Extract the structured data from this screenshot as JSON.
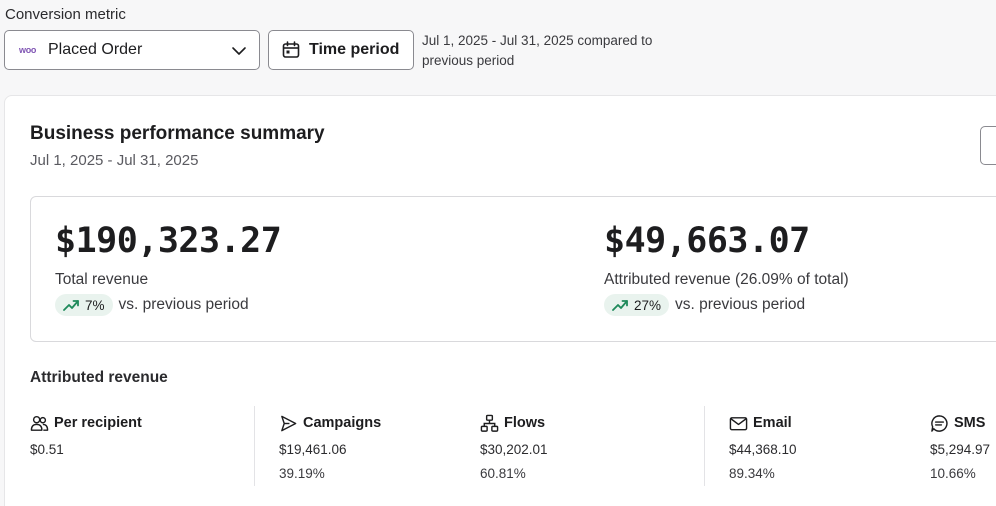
{
  "header": {
    "metric_label": "Conversion metric",
    "metric_value": "Placed Order",
    "metric_icon": "woo",
    "time_button_label": "Time period",
    "period_text": "Jul 1, 2025 - Jul 31, 2025 compared to previous period"
  },
  "card": {
    "title": "Business performance summary",
    "subtitle": "Jul 1, 2025 - Jul 31, 2025"
  },
  "summary": {
    "total": {
      "value": "$190,323.27",
      "caption": "Total revenue",
      "change": "7%",
      "change_text": "vs. previous period"
    },
    "attributed": {
      "value": "$49,663.07",
      "caption": "Attributed revenue (26.09% of total)",
      "change": "27%",
      "change_text": "vs. previous period"
    }
  },
  "attributed_section": {
    "title": "Attributed revenue",
    "stats": [
      {
        "label": "Per recipient",
        "value": "$0.51",
        "pct": ""
      },
      {
        "label": "Campaigns",
        "value": "$19,461.06",
        "pct": "39.19%"
      },
      {
        "label": "Flows",
        "value": "$30,202.01",
        "pct": "60.81%"
      },
      {
        "label": "Email",
        "value": "$44,368.10",
        "pct": "89.34%"
      },
      {
        "label": "SMS",
        "value": "$5,294.97",
        "pct": "10.66%"
      }
    ]
  },
  "colors": {
    "accent_purple": "#7f54b3",
    "trend_green": "#1f8a5b",
    "trend_pill_bg": "#e9f3ee"
  }
}
